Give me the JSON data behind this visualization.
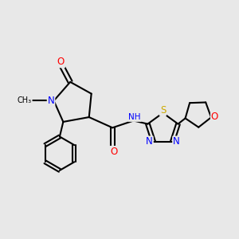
{
  "bg_color": "#e8e8e8",
  "bond_color": "#000000",
  "atom_colors": {
    "N": "#0000ff",
    "O": "#ff0000",
    "S": "#ccaa00",
    "C": "#000000"
  }
}
